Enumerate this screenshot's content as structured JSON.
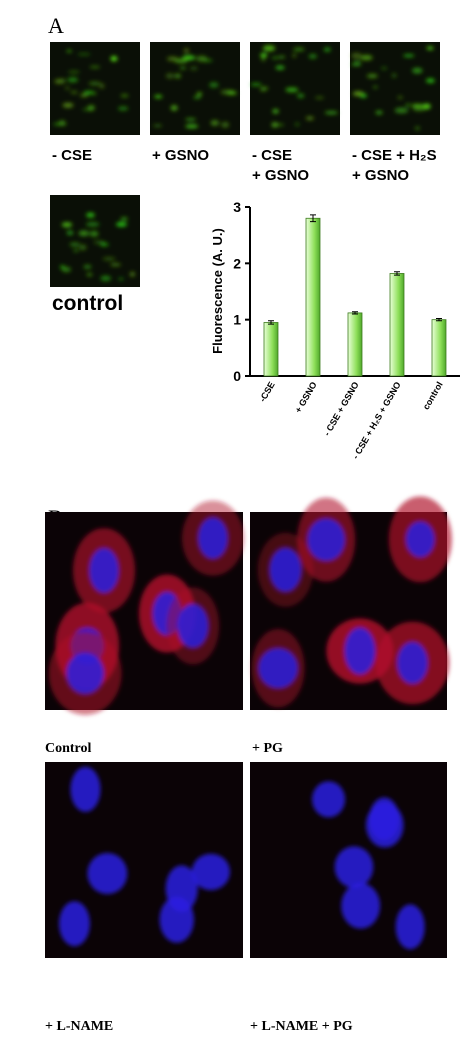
{
  "panel_a": {
    "letter": "A",
    "image_labels": [
      [
        "- CSE"
      ],
      [
        "+ GSNO"
      ],
      [
        "- CSE",
        "+ GSNO"
      ],
      [
        "- CSE + H₂S",
        "+ GSNO"
      ]
    ],
    "control_label": "control"
  },
  "chart_data": {
    "type": "bar",
    "ylabel": "Fluorescence (A. U.)",
    "categories": [
      "-CSE",
      "+ GSNO",
      "- CSE + GSNO",
      "- CSE + H₂S + GSNO",
      "control"
    ],
    "values": [
      0.95,
      2.8,
      1.12,
      1.82,
      1.0
    ],
    "errors": [
      0.03,
      0.06,
      0.02,
      0.03,
      0.02
    ],
    "color": "#8fe05a",
    "ylim": [
      0,
      3
    ],
    "yticks": [
      0,
      1,
      2,
      3
    ]
  },
  "panel_b": {
    "letter": "B",
    "image_labels": [
      "Control",
      "+ PG",
      "+ L-NAME",
      "+ L-NAME + PG"
    ]
  }
}
